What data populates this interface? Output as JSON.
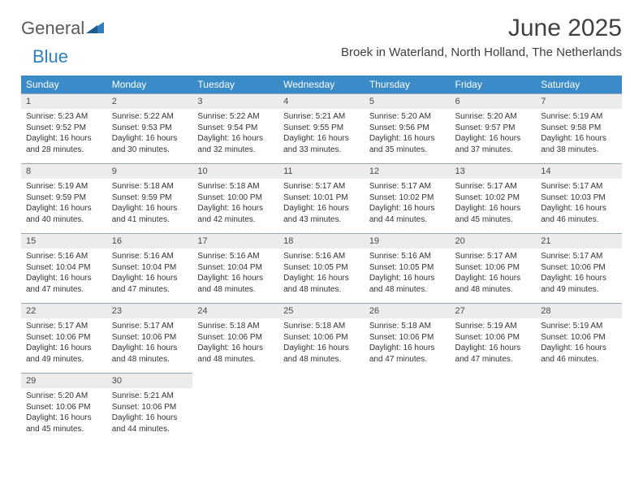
{
  "logo": {
    "word1": "General",
    "word2": "Blue"
  },
  "title": "June 2025",
  "location": "Broek in Waterland, North Holland, The Netherlands",
  "colors": {
    "header_bg": "#3b8bc8",
    "header_fg": "#ffffff",
    "daynum_bg": "#ececec",
    "daynum_border": "#9aa7b2",
    "text": "#333333",
    "title": "#404040",
    "logo_gray": "#5a5a5a",
    "logo_blue": "#2f7fc1"
  },
  "typography": {
    "title_fontsize": 30,
    "location_fontsize": 15,
    "dayhead_fontsize": 12,
    "daynum_fontsize": 11,
    "body_fontsize": 10
  },
  "weekdays": [
    "Sunday",
    "Monday",
    "Tuesday",
    "Wednesday",
    "Thursday",
    "Friday",
    "Saturday"
  ],
  "weeks": [
    [
      {
        "n": "1",
        "sr": "5:23 AM",
        "ss": "9:52 PM",
        "dl": "16 hours and 28 minutes."
      },
      {
        "n": "2",
        "sr": "5:22 AM",
        "ss": "9:53 PM",
        "dl": "16 hours and 30 minutes."
      },
      {
        "n": "3",
        "sr": "5:22 AM",
        "ss": "9:54 PM",
        "dl": "16 hours and 32 minutes."
      },
      {
        "n": "4",
        "sr": "5:21 AM",
        "ss": "9:55 PM",
        "dl": "16 hours and 33 minutes."
      },
      {
        "n": "5",
        "sr": "5:20 AM",
        "ss": "9:56 PM",
        "dl": "16 hours and 35 minutes."
      },
      {
        "n": "6",
        "sr": "5:20 AM",
        "ss": "9:57 PM",
        "dl": "16 hours and 37 minutes."
      },
      {
        "n": "7",
        "sr": "5:19 AM",
        "ss": "9:58 PM",
        "dl": "16 hours and 38 minutes."
      }
    ],
    [
      {
        "n": "8",
        "sr": "5:19 AM",
        "ss": "9:59 PM",
        "dl": "16 hours and 40 minutes."
      },
      {
        "n": "9",
        "sr": "5:18 AM",
        "ss": "9:59 PM",
        "dl": "16 hours and 41 minutes."
      },
      {
        "n": "10",
        "sr": "5:18 AM",
        "ss": "10:00 PM",
        "dl": "16 hours and 42 minutes."
      },
      {
        "n": "11",
        "sr": "5:17 AM",
        "ss": "10:01 PM",
        "dl": "16 hours and 43 minutes."
      },
      {
        "n": "12",
        "sr": "5:17 AM",
        "ss": "10:02 PM",
        "dl": "16 hours and 44 minutes."
      },
      {
        "n": "13",
        "sr": "5:17 AM",
        "ss": "10:02 PM",
        "dl": "16 hours and 45 minutes."
      },
      {
        "n": "14",
        "sr": "5:17 AM",
        "ss": "10:03 PM",
        "dl": "16 hours and 46 minutes."
      }
    ],
    [
      {
        "n": "15",
        "sr": "5:16 AM",
        "ss": "10:04 PM",
        "dl": "16 hours and 47 minutes."
      },
      {
        "n": "16",
        "sr": "5:16 AM",
        "ss": "10:04 PM",
        "dl": "16 hours and 47 minutes."
      },
      {
        "n": "17",
        "sr": "5:16 AM",
        "ss": "10:04 PM",
        "dl": "16 hours and 48 minutes."
      },
      {
        "n": "18",
        "sr": "5:16 AM",
        "ss": "10:05 PM",
        "dl": "16 hours and 48 minutes."
      },
      {
        "n": "19",
        "sr": "5:16 AM",
        "ss": "10:05 PM",
        "dl": "16 hours and 48 minutes."
      },
      {
        "n": "20",
        "sr": "5:17 AM",
        "ss": "10:06 PM",
        "dl": "16 hours and 48 minutes."
      },
      {
        "n": "21",
        "sr": "5:17 AM",
        "ss": "10:06 PM",
        "dl": "16 hours and 49 minutes."
      }
    ],
    [
      {
        "n": "22",
        "sr": "5:17 AM",
        "ss": "10:06 PM",
        "dl": "16 hours and 49 minutes."
      },
      {
        "n": "23",
        "sr": "5:17 AM",
        "ss": "10:06 PM",
        "dl": "16 hours and 48 minutes."
      },
      {
        "n": "24",
        "sr": "5:18 AM",
        "ss": "10:06 PM",
        "dl": "16 hours and 48 minutes."
      },
      {
        "n": "25",
        "sr": "5:18 AM",
        "ss": "10:06 PM",
        "dl": "16 hours and 48 minutes."
      },
      {
        "n": "26",
        "sr": "5:18 AM",
        "ss": "10:06 PM",
        "dl": "16 hours and 47 minutes."
      },
      {
        "n": "27",
        "sr": "5:19 AM",
        "ss": "10:06 PM",
        "dl": "16 hours and 47 minutes."
      },
      {
        "n": "28",
        "sr": "5:19 AM",
        "ss": "10:06 PM",
        "dl": "16 hours and 46 minutes."
      }
    ],
    [
      {
        "n": "29",
        "sr": "5:20 AM",
        "ss": "10:06 PM",
        "dl": "16 hours and 45 minutes."
      },
      {
        "n": "30",
        "sr": "5:21 AM",
        "ss": "10:06 PM",
        "dl": "16 hours and 44 minutes."
      },
      null,
      null,
      null,
      null,
      null
    ]
  ],
  "labels": {
    "sunrise": "Sunrise:",
    "sunset": "Sunset:",
    "daylight": "Daylight:"
  }
}
